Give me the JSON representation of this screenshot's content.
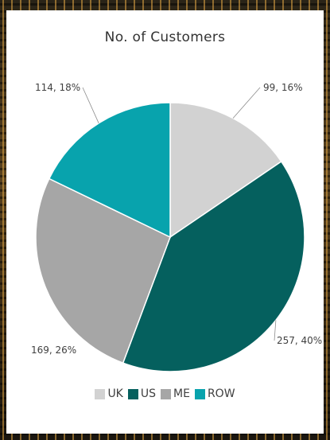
{
  "chart_data": {
    "type": "pie",
    "title": "No. of Customers",
    "categories": [
      "UK",
      "US",
      "ME",
      "ROW"
    ],
    "values": [
      99,
      257,
      169,
      114
    ],
    "percentages": [
      16,
      40,
      26,
      18
    ],
    "data_labels": [
      "99, 16%",
      "257, 40%",
      "169, 26%",
      "114, 18%"
    ],
    "colors": [
      "#d2d2d2",
      "#05605e",
      "#a6a6a6",
      "#08a3ad"
    ],
    "start_angle": "12 o'clock",
    "direction": "clockwise",
    "legend_position": "bottom"
  }
}
